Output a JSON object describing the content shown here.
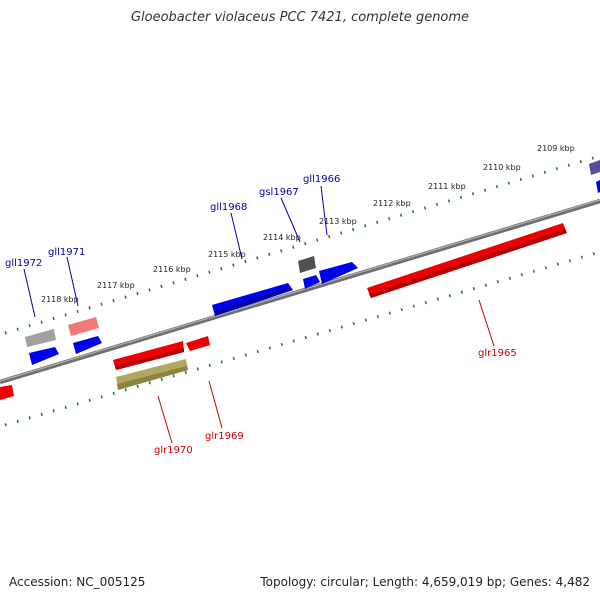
{
  "title": "Gloeobacter violaceus PCC 7421, complete genome",
  "footer": {
    "accession": "Accession: NC_005125",
    "topology": "Topology: circular; Length: 4,659,019 bp; Genes: 4,482"
  },
  "colors": {
    "backbone": "#808080",
    "tick": "#1e7a1e",
    "forward_gene": "#0000ee",
    "reverse_gene": "#ee0000",
    "forward_label": "#0000aa",
    "reverse_label": "#cc0000",
    "gray_gene": "#a0a0a0",
    "pink_gene": "#f07878",
    "olive_gene": "#b0a860",
    "dark_gene": "#505050",
    "purple_gene": "#5a4c9a"
  },
  "kbp_labels": [
    "2109 kbp",
    "2110 kbp",
    "2111 kbp",
    "2112 kbp",
    "2113 kbp",
    "2114 kbp",
    "2115 kbp",
    "2116 kbp",
    "2117 kbp",
    "2118 kbp"
  ],
  "gene_labels": [
    "gll1966",
    "gsl1967",
    "gll1968",
    "gll1971",
    "gll1972",
    "glr1965",
    "glr1969",
    "glr1970"
  ]
}
